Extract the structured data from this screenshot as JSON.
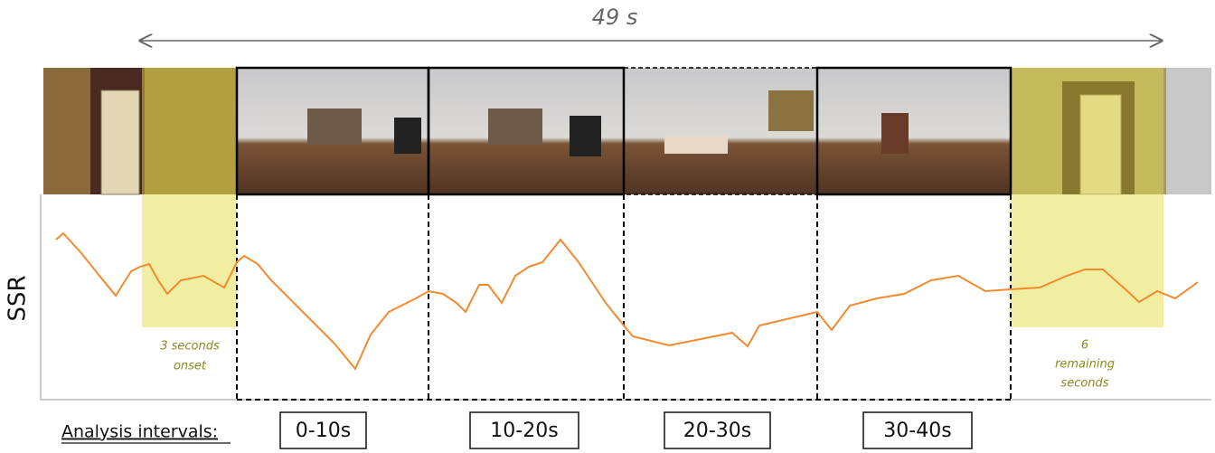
{
  "header": {
    "duration": "49 s"
  },
  "plot": {
    "y_label": "SSR",
    "onset_note": [
      "3 seconds",
      "onset"
    ],
    "remaining_note": [
      "6",
      "remaining",
      "seconds"
    ]
  },
  "footer": {
    "label": "Analysis intervals:",
    "intervals": [
      "0-10s",
      "10-20s",
      "20-30s",
      "30-40s"
    ]
  }
}
